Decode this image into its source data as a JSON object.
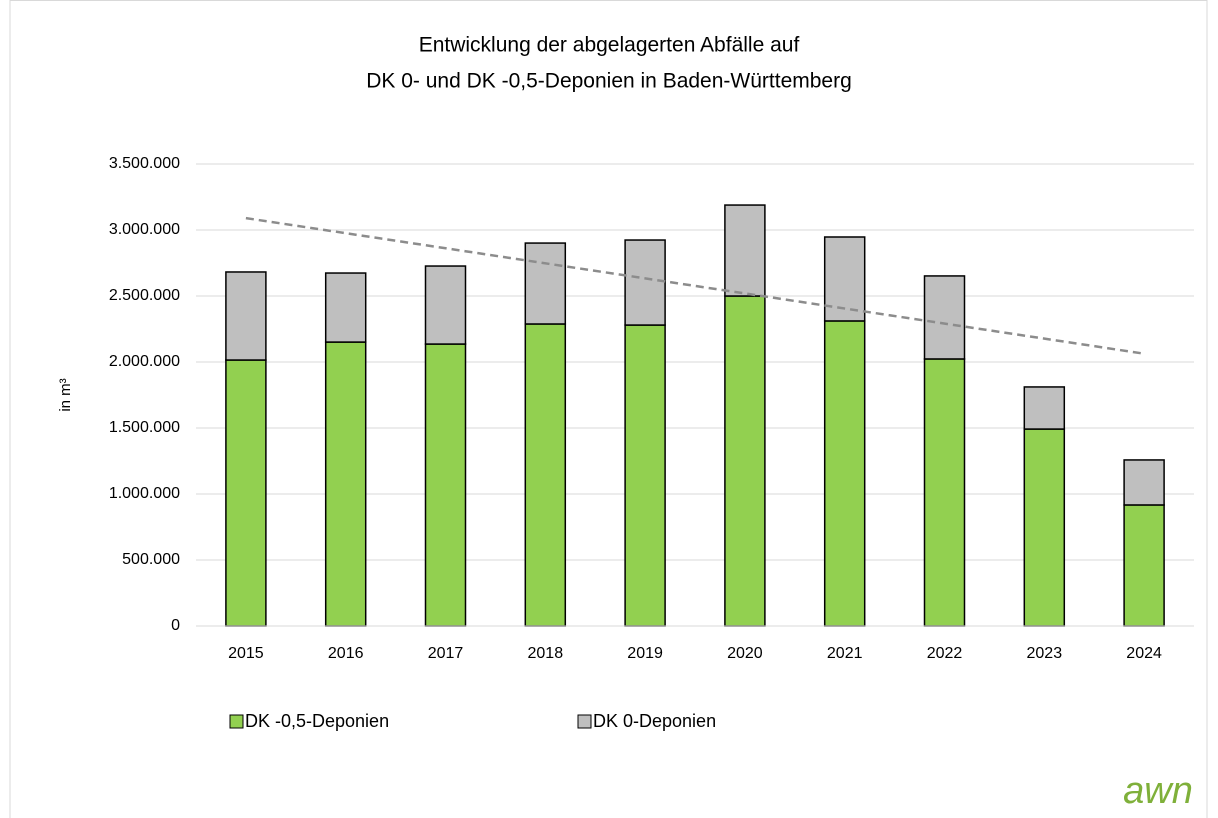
{
  "chart_data": {
    "type": "stacked_bar",
    "title": [
      "Entwicklung der abgelagerten Abfälle auf",
      "DK 0- und DK -0,5-Deponien in Baden-Württemberg"
    ],
    "y_label": "in m³",
    "categories": [
      "2015",
      "2016",
      "2017",
      "2018",
      "2019",
      "2020",
      "2021",
      "2022",
      "2023",
      "2024"
    ],
    "series": [
      {
        "name": "DK -0,5-Deponien",
        "color": "#92d050",
        "values": [
          2015000,
          2151000,
          2136000,
          2288000,
          2280000,
          2500000,
          2311000,
          2023000,
          1492000,
          917000
        ]
      },
      {
        "name": "DK 0-Deponien",
        "color": "#bfbfbf",
        "values": [
          667000,
          523000,
          591000,
          613000,
          644000,
          689000,
          636000,
          629000,
          319000,
          341000
        ]
      }
    ],
    "ylim": [
      0,
      3500000
    ],
    "yticks": [
      0,
      {
        "value": 500000,
        "label": "500.000"
      },
      {
        "value": 1000000,
        "label": "1.000.000"
      },
      {
        "value": 1500000,
        "label": "1.500.000"
      },
      {
        "value": 2000000,
        "label": "2.000.000"
      },
      {
        "value": 2500000,
        "label": "2.500.000"
      },
      {
        "value": 3000000,
        "label": "3.000.000"
      },
      {
        "value": 3500000,
        "label": "3.500.000"
      }
    ],
    "grid": true,
    "trendline": true,
    "logo": "awn"
  }
}
